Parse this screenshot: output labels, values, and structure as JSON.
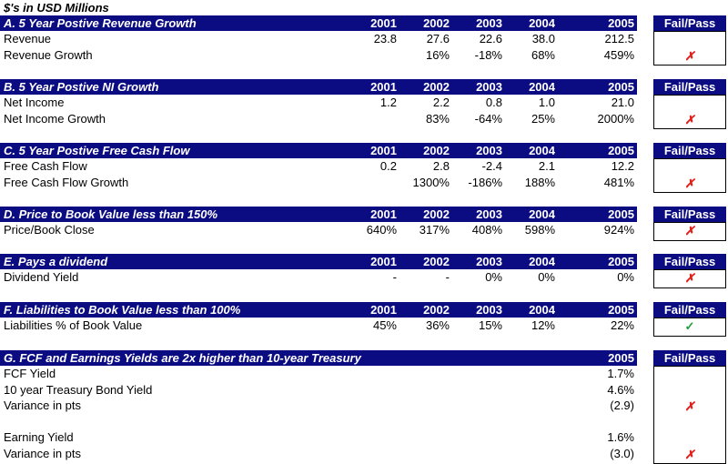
{
  "units_note": "$'s in USD Millions",
  "fail_pass_label": "Fail/Pass",
  "fail_symbol": "✗",
  "pass_symbol": "✓",
  "colors": {
    "header_bg": "#0b0b82",
    "fail": "#e41b17",
    "pass": "#1e9e3a"
  },
  "sections": [
    {
      "title": "A. 5 Year Postive Revenue Growth",
      "years": [
        "2001",
        "2002",
        "2003",
        "2004",
        "2005"
      ],
      "rows": [
        {
          "label": "Revenue",
          "values": [
            "23.8",
            "27.6",
            "22.6",
            "38.0",
            "212.5"
          ]
        },
        {
          "label": "Revenue Growth",
          "values": [
            "",
            "16%",
            "-18%",
            "68%",
            "459%"
          ]
        }
      ],
      "result": "fail"
    },
    {
      "title": "B. 5 Year Postive NI Growth",
      "years": [
        "2001",
        "2002",
        "2003",
        "2004",
        "2005"
      ],
      "rows": [
        {
          "label": "Net Income",
          "values": [
            "1.2",
            "2.2",
            "0.8",
            "1.0",
            "21.0"
          ]
        },
        {
          "label": "Net Income Growth",
          "values": [
            "",
            "83%",
            "-64%",
            "25%",
            "2000%"
          ]
        }
      ],
      "result": "fail"
    },
    {
      "title": "C. 5 Year Postive Free Cash Flow",
      "years": [
        "2001",
        "2002",
        "2003",
        "2004",
        "2005"
      ],
      "rows": [
        {
          "label": "Free Cash Flow",
          "values": [
            "0.2",
            "2.8",
            "-2.4",
            "2.1",
            "12.2"
          ]
        },
        {
          "label": "Free Cash Flow Growth",
          "values": [
            "",
            "1300%",
            "-186%",
            "188%",
            "481%"
          ]
        }
      ],
      "result": "fail"
    },
    {
      "title": "D. Price to Book Value less than 150%",
      "years": [
        "2001",
        "2002",
        "2003",
        "2004",
        "2005"
      ],
      "rows": [
        {
          "label": "Price/Book Close",
          "values": [
            "640%",
            "317%",
            "408%",
            "598%",
            "924%"
          ]
        }
      ],
      "result": "fail"
    },
    {
      "title": "E. Pays a dividend",
      "years": [
        "2001",
        "2002",
        "2003",
        "2004",
        "2005"
      ],
      "rows": [
        {
          "label": "Dividend Yield",
          "values": [
            "-",
            "-",
            "0%",
            "0%",
            "0%"
          ]
        }
      ],
      "result": "fail"
    },
    {
      "title": "F. Liabilities to Book Value less than 100%",
      "years": [
        "2001",
        "2002",
        "2003",
        "2004",
        "2005"
      ],
      "rows": [
        {
          "label": "Liabilities % of Book Value",
          "values": [
            "45%",
            "36%",
            "15%",
            "12%",
            "22%"
          ]
        }
      ],
      "result": "pass"
    },
    {
      "title": "G. FCF and Earnings Yields are 2x higher than 10-year Treasury",
      "years": [
        "",
        "",
        "",
        "",
        "2005"
      ],
      "rows": [
        {
          "label": "FCF Yield",
          "values": [
            "",
            "",
            "",
            "",
            "1.7%"
          ]
        },
        {
          "label": "10 year Treasury Bond Yield",
          "values": [
            "",
            "",
            "",
            "",
            "4.6%"
          ]
        },
        {
          "label": "Variance in pts",
          "values": [
            "",
            "",
            "",
            "",
            "(2.9)"
          ]
        },
        {
          "label": "",
          "values": [
            "",
            "",
            "",
            "",
            ""
          ]
        },
        {
          "label": "Earning Yield",
          "values": [
            "",
            "",
            "",
            "",
            "1.6%"
          ]
        },
        {
          "label": "Variance in pts",
          "values": [
            "",
            "",
            "",
            "",
            "(3.0)"
          ]
        }
      ],
      "result": "fail",
      "marks": [
        {
          "row": 2,
          "result": "fail"
        },
        {
          "row": 5,
          "result": "fail"
        }
      ]
    }
  ]
}
